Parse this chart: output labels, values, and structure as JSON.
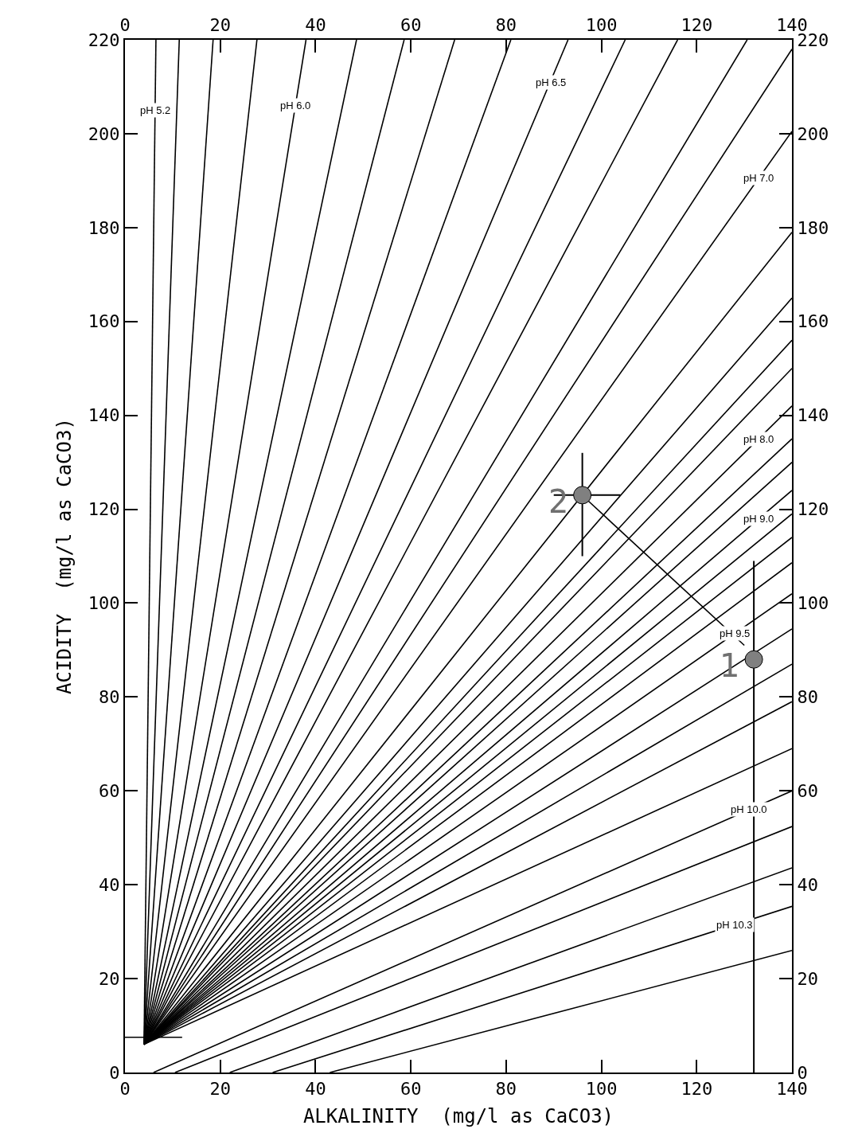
{
  "chart_data": {
    "type": "line",
    "xlabel": "ALKALINITY  (mg/l as CaCO3)",
    "ylabel": "ACIDITY  (mg/l as CaCO3)",
    "xlim": [
      0,
      140
    ],
    "xticks": [
      0,
      20,
      40,
      60,
      80,
      100,
      120,
      140
    ],
    "x2lim": [
      0,
      140
    ],
    "x2ticks": [
      0,
      20,
      40,
      60,
      80,
      100,
      120,
      140
    ],
    "ylim": [
      0,
      220
    ],
    "yticks": [
      0,
      20,
      40,
      60,
      80,
      100,
      120,
      140,
      160,
      180,
      200,
      220
    ],
    "y2lim": [
      0,
      220
    ],
    "y2ticks": [
      0,
      20,
      40,
      60,
      80,
      100,
      120,
      140,
      160,
      180,
      200,
      220
    ],
    "grid": false,
    "marker": "none",
    "line_style": "solid",
    "series": [
      {
        "color": "#000000",
        "x": [
          4,
          6.5
        ],
        "values": [
          6,
          220
        ]
      },
      {
        "color": "#000000",
        "x": [
          4,
          11.4
        ],
        "values": [
          6,
          220
        ]
      },
      {
        "color": "#000000",
        "x": [
          4,
          18.5
        ],
        "values": [
          6,
          220
        ]
      },
      {
        "color": "#000000",
        "x": [
          4,
          27.7
        ],
        "values": [
          6,
          220
        ]
      },
      {
        "color": "#000000",
        "x": [
          4,
          38
        ],
        "values": [
          6,
          220
        ]
      },
      {
        "color": "#000000",
        "x": [
          4,
          48.6
        ],
        "values": [
          6,
          220
        ]
      },
      {
        "color": "#000000",
        "x": [
          4,
          58.6
        ],
        "values": [
          6,
          220
        ]
      },
      {
        "color": "#000000",
        "x": [
          4,
          69.2
        ],
        "values": [
          6,
          220
        ]
      },
      {
        "color": "#000000",
        "x": [
          4,
          81
        ],
        "values": [
          6,
          220
        ]
      },
      {
        "color": "#000000",
        "x": [
          4,
          93
        ],
        "values": [
          6,
          220
        ]
      },
      {
        "color": "#000000",
        "x": [
          4,
          105
        ],
        "values": [
          6,
          220
        ]
      },
      {
        "color": "#000000",
        "x": [
          4,
          116
        ],
        "values": [
          6,
          220
        ]
      },
      {
        "color": "#000000",
        "x": [
          4,
          130.6
        ],
        "values": [
          6,
          220
        ]
      },
      {
        "color": "#000000",
        "x": [
          4,
          140
        ],
        "values": [
          6,
          218
        ]
      },
      {
        "color": "#000000",
        "x": [
          4,
          140
        ],
        "values": [
          6,
          200.5
        ]
      },
      {
        "color": "#000000",
        "x": [
          4,
          140
        ],
        "values": [
          6,
          179
        ]
      },
      {
        "color": "#000000",
        "x": [
          4,
          140
        ],
        "values": [
          6,
          165
        ]
      },
      {
        "color": "#000000",
        "x": [
          4,
          140
        ],
        "values": [
          6,
          156
        ]
      },
      {
        "color": "#000000",
        "x": [
          4,
          140
        ],
        "values": [
          6,
          150
        ]
      },
      {
        "color": "#000000",
        "x": [
          4,
          140
        ],
        "values": [
          6,
          142
        ]
      },
      {
        "color": "#000000",
        "x": [
          4,
          140
        ],
        "values": [
          6,
          135
        ]
      },
      {
        "color": "#000000",
        "x": [
          4,
          140
        ],
        "values": [
          6,
          130
        ]
      },
      {
        "color": "#000000",
        "x": [
          4,
          140
        ],
        "values": [
          6,
          124
        ]
      },
      {
        "color": "#000000",
        "x": [
          4,
          140
        ],
        "values": [
          6,
          119
        ]
      },
      {
        "color": "#000000",
        "x": [
          4,
          140
        ],
        "values": [
          6,
          114
        ]
      },
      {
        "color": "#000000",
        "x": [
          4,
          140
        ],
        "values": [
          6,
          108.6
        ]
      },
      {
        "color": "#000000",
        "x": [
          4,
          140
        ],
        "values": [
          6,
          102
        ]
      },
      {
        "color": "#000000",
        "x": [
          4,
          140
        ],
        "values": [
          6,
          94.5
        ]
      },
      {
        "color": "#000000",
        "x": [
          4,
          140
        ],
        "values": [
          6,
          87
        ]
      },
      {
        "color": "#000000",
        "x": [
          4,
          140
        ],
        "values": [
          6,
          79
        ]
      },
      {
        "color": "#000000",
        "x": [
          4,
          140
        ],
        "values": [
          6,
          69
        ]
      },
      {
        "color": "#000000",
        "x": [
          6,
          140
        ],
        "values": [
          0,
          60
        ]
      },
      {
        "color": "#000000",
        "x": [
          10.5,
          140
        ],
        "values": [
          0,
          52.4
        ]
      },
      {
        "color": "#000000",
        "x": [
          22,
          140
        ],
        "values": [
          0,
          43.6
        ]
      },
      {
        "color": "#000000",
        "x": [
          31,
          140
        ],
        "values": [
          0,
          35.4
        ]
      },
      {
        "color": "#000000",
        "x": [
          43,
          140
        ],
        "values": [
          0,
          26
        ]
      },
      {
        "color": "#000000",
        "x": [
          0,
          12
        ],
        "values": [
          7.5,
          7.5
        ]
      },
      {
        "color": "#000000",
        "x": [
          130,
          97
        ],
        "values": [
          91,
          122
        ]
      },
      {
        "type": "scatter",
        "color": "#808080",
        "marker": "circle",
        "x": [
          132,
          96
        ],
        "values": [
          88,
          123
        ],
        "errors": [
          [
            0,
            109
          ],
          [
            110,
            132
          ]
        ],
        "xerrors": [
          null,
          [
            90,
            104
          ]
        ]
      }
    ],
    "annotations": [
      {
        "text": "1",
        "x": 132,
        "y": 88
      },
      {
        "text": "2",
        "x": 96,
        "y": 123
      },
      {
        "text": "pH 5.2",
        "x": 6.3,
        "y": 205
      },
      {
        "text": "pH 6.0",
        "x": 35.8,
        "y": 206
      },
      {
        "text": "pH 6.5",
        "x": 89.3,
        "y": 211
      },
      {
        "text": "pH 7.0",
        "x": 133,
        "y": 190.5
      },
      {
        "text": "pH 8.0",
        "x": 133,
        "y": 135
      },
      {
        "text": "pH 9.0",
        "x": 133,
        "y": 117.9
      },
      {
        "text": "pH 9.5",
        "x": 128,
        "y": 93.5
      },
      {
        "text": "pH 10.0",
        "x": 131,
        "y": 56
      },
      {
        "text": "pH 10.3",
        "x": 128,
        "y": 31.5
      }
    ]
  }
}
